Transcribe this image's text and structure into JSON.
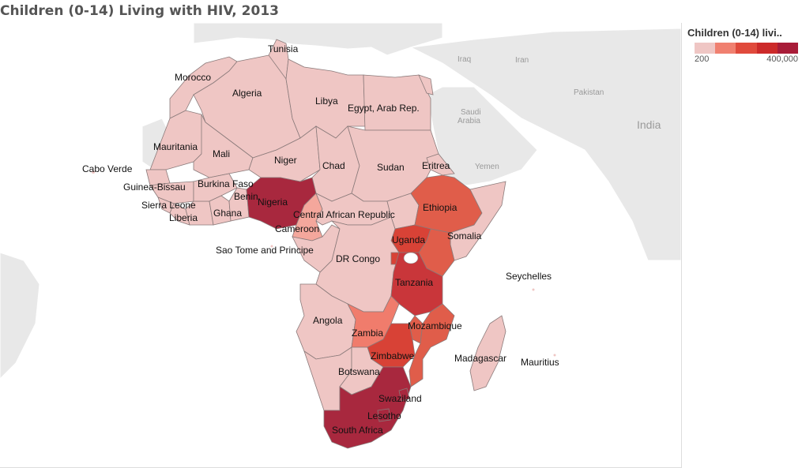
{
  "title": "Children (0-14) Living with HIV, 2013",
  "legend": {
    "title": "Children (0-14) livi..",
    "min_label": "200",
    "max_label": "400,000",
    "colors": [
      "#efc6c4",
      "#f08070",
      "#e04a3c",
      "#cc2a2a",
      "#a81c38"
    ]
  },
  "background_labels": {
    "iraq": "Iraq",
    "iran": "Iran",
    "saudi_1": "Saudi",
    "saudi_2": "Arabia",
    "pakistan": "Pakistan",
    "yemen": "Yemen",
    "india": "India"
  },
  "countries": {
    "tunisia": "Tunisia",
    "morocco": "Morocco",
    "algeria": "Algeria",
    "libya": "Libya",
    "egypt": "Egypt, Arab Rep.",
    "mauritania": "Mauritania",
    "mali": "Mali",
    "niger": "Niger",
    "chad": "Chad",
    "sudan": "Sudan",
    "eritrea": "Eritrea",
    "cabo_verde": "Cabo Verde",
    "guinea_bissau": "Guinea-Bissau",
    "burkina_faso": "Burkina Faso",
    "benin": "Benin",
    "nigeria": "Nigeria",
    "sierra_leone": "Sierra Leone",
    "liberia": "Liberia",
    "ghana": "Ghana",
    "car": "Central African Republic",
    "ethiopia": "Ethiopia",
    "cameroon": "Cameroon",
    "somalia": "Somalia",
    "uganda": "Uganda",
    "sao_tome": "Sao Tome and Principe",
    "dr_congo": "DR Congo",
    "seychelles": "Seychelles",
    "tanzania": "Tanzania",
    "angola": "Angola",
    "mozambique": "Mozambique",
    "zambia": "Zambia",
    "zimbabwe": "Zimbabwe",
    "madagascar": "Madagascar",
    "mauritius": "Mauritius",
    "botswana": "Botswana",
    "swaziland": "Swaziland",
    "lesotho": "Lesotho",
    "south_africa": "South Africa"
  }
}
